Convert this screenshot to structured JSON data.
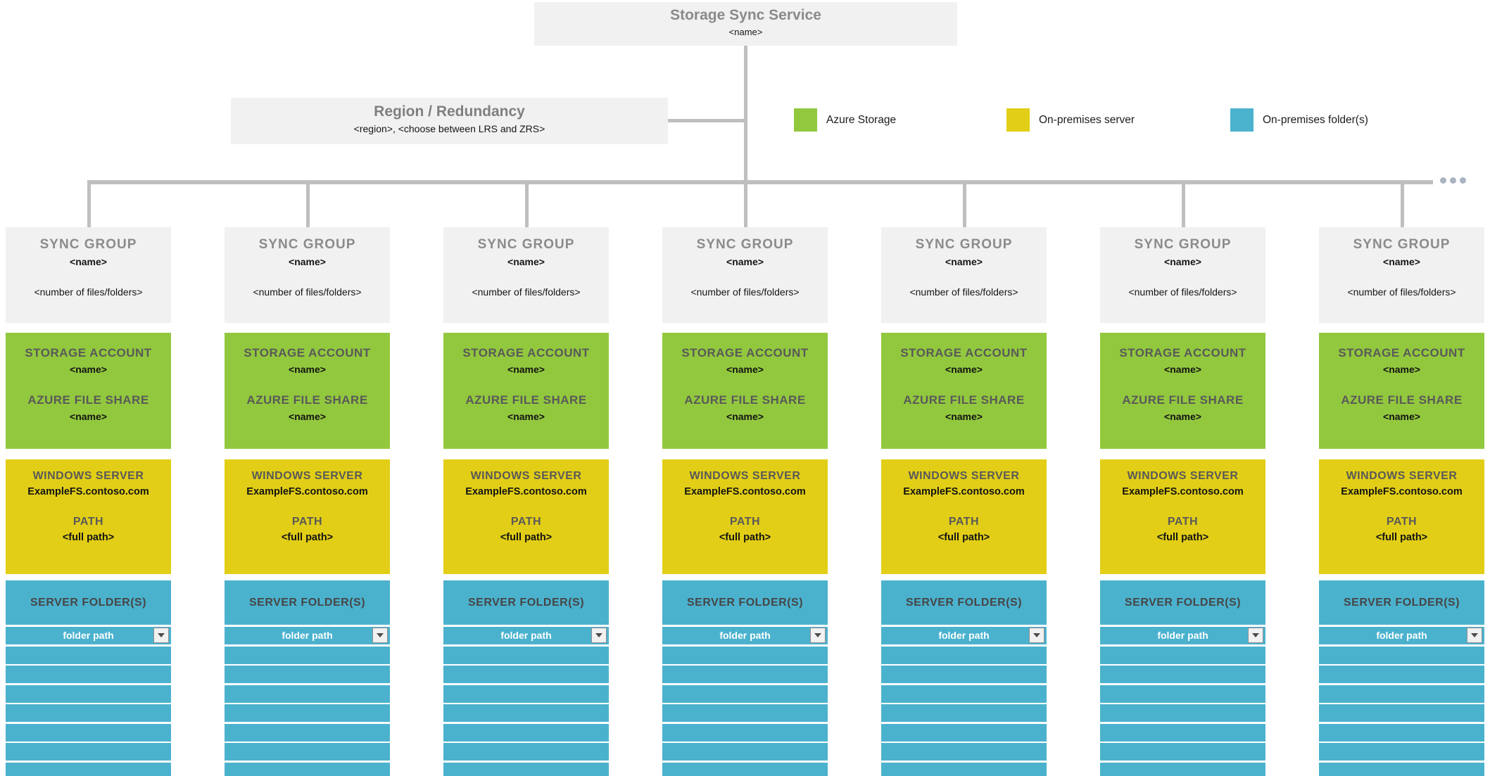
{
  "service": {
    "title": "Storage Sync Service",
    "name_placeholder": "<name>"
  },
  "region": {
    "title": "Region / Redundancy",
    "subtitle": "<region>, <choose between LRS and ZRS>"
  },
  "legend": {
    "items": [
      {
        "label": "Azure Storage",
        "color": "#92c83e"
      },
      {
        "label": "On-premises server",
        "color": "#e2ce16"
      },
      {
        "label": "On-premises folder(s)",
        "color": "#4bb2ce"
      }
    ]
  },
  "more_indicator": "ellipsis-icon",
  "theme": {
    "azure_storage_green": "#92c83e",
    "on_premises_server_yellow": "#e2ce16",
    "on_premises_folder_blue": "#4bb2ce",
    "box_gray": "#f1f1f1",
    "connector_gray": "#bfbfbf",
    "heading_gray": "#8b8b8b"
  },
  "sync_groups": [
    {
      "title": "SYNC GROUP",
      "name": "<name>",
      "count": "<number of files/folders>",
      "storage": {
        "account_label": "STORAGE ACCOUNT",
        "account_name": "<name>",
        "share_label": "AZURE FILE SHARE",
        "share_name": "<name>"
      },
      "server": {
        "label": "WINDOWS SERVER",
        "host": "ExampleFS.contoso.com",
        "path_label": "PATH",
        "path_value": "<full path>"
      },
      "folders": {
        "label": "SERVER FOLDER(S)",
        "selected": "folder path",
        "empty_rows": 7
      }
    },
    {
      "title": "SYNC GROUP",
      "name": "<name>",
      "count": "<number of files/folders>",
      "storage": {
        "account_label": "STORAGE ACCOUNT",
        "account_name": "<name>",
        "share_label": "AZURE FILE SHARE",
        "share_name": "<name>"
      },
      "server": {
        "label": "WINDOWS SERVER",
        "host": "ExampleFS.contoso.com",
        "path_label": "PATH",
        "path_value": "<full path>"
      },
      "folders": {
        "label": "SERVER FOLDER(S)",
        "selected": "folder path",
        "empty_rows": 7
      }
    },
    {
      "title": "SYNC GROUP",
      "name": "<name>",
      "count": "<number of files/folders>",
      "storage": {
        "account_label": "STORAGE ACCOUNT",
        "account_name": "<name>",
        "share_label": "AZURE FILE SHARE",
        "share_name": "<name>"
      },
      "server": {
        "label": "WINDOWS SERVER",
        "host": "ExampleFS.contoso.com",
        "path_label": "PATH",
        "path_value": "<full path>"
      },
      "folders": {
        "label": "SERVER FOLDER(S)",
        "selected": "folder path",
        "empty_rows": 7
      }
    },
    {
      "title": "SYNC GROUP",
      "name": "<name>",
      "count": "<number of files/folders>",
      "storage": {
        "account_label": "STORAGE ACCOUNT",
        "account_name": "<name>",
        "share_label": "AZURE FILE SHARE",
        "share_name": "<name>"
      },
      "server": {
        "label": "WINDOWS SERVER",
        "host": "ExampleFS.contoso.com",
        "path_label": "PATH",
        "path_value": "<full path>"
      },
      "folders": {
        "label": "SERVER FOLDER(S)",
        "selected": "folder path",
        "empty_rows": 7
      }
    },
    {
      "title": "SYNC GROUP",
      "name": "<name>",
      "count": "<number of files/folders>",
      "storage": {
        "account_label": "STORAGE ACCOUNT",
        "account_name": "<name>",
        "share_label": "AZURE FILE SHARE",
        "share_name": "<name>"
      },
      "server": {
        "label": "WINDOWS SERVER",
        "host": "ExampleFS.contoso.com",
        "path_label": "PATH",
        "path_value": "<full path>"
      },
      "folders": {
        "label": "SERVER FOLDER(S)",
        "selected": "folder path",
        "empty_rows": 7
      }
    },
    {
      "title": "SYNC GROUP",
      "name": "<name>",
      "count": "<number of files/folders>",
      "storage": {
        "account_label": "STORAGE ACCOUNT",
        "account_name": "<name>",
        "share_label": "AZURE FILE SHARE",
        "share_name": "<name>"
      },
      "server": {
        "label": "WINDOWS SERVER",
        "host": "ExampleFS.contoso.com",
        "path_label": "PATH",
        "path_value": "<full path>"
      },
      "folders": {
        "label": "SERVER FOLDER(S)",
        "selected": "folder path",
        "empty_rows": 7
      }
    },
    {
      "title": "SYNC GROUP",
      "name": "<name>",
      "count": "<number of files/folders>",
      "storage": {
        "account_label": "STORAGE ACCOUNT",
        "account_name": "<name>",
        "share_label": "AZURE FILE SHARE",
        "share_name": "<name>"
      },
      "server": {
        "label": "WINDOWS SERVER",
        "host": "ExampleFS.contoso.com",
        "path_label": "PATH",
        "path_value": "<full path>"
      },
      "folders": {
        "label": "SERVER FOLDER(S)",
        "selected": "folder path",
        "empty_rows": 7
      }
    }
  ]
}
